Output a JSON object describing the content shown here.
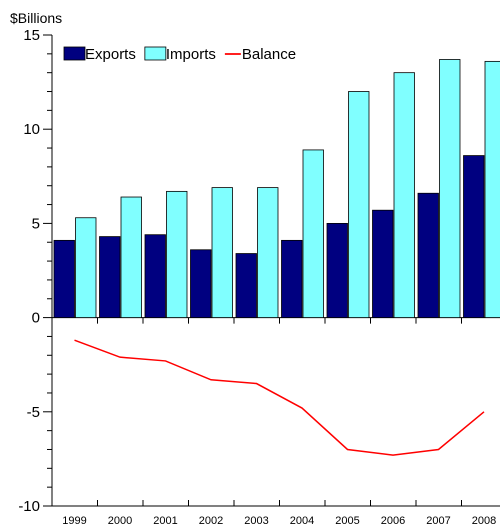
{
  "chart_data": {
    "type": "bar",
    "unit_label": "$Billions",
    "categories": [
      "1999",
      "2000",
      "2001",
      "2002",
      "2003",
      "2004",
      "2005",
      "2006",
      "2007",
      "2008"
    ],
    "series": [
      {
        "name": "Exports",
        "type": "bar",
        "color": "#000080",
        "values": [
          4.1,
          4.3,
          4.4,
          3.6,
          3.4,
          4.1,
          5.0,
          5.7,
          6.6,
          8.6
        ]
      },
      {
        "name": "Imports",
        "type": "bar",
        "color": "#80ffff",
        "values": [
          5.3,
          6.4,
          6.7,
          6.9,
          6.9,
          8.9,
          12.0,
          13.0,
          13.7,
          13.6
        ]
      },
      {
        "name": "Balance",
        "type": "line",
        "color": "#ff0000",
        "values": [
          -1.2,
          -2.1,
          -2.3,
          -3.3,
          -3.5,
          -4.8,
          -7.0,
          -7.3,
          -7.0,
          -5.0
        ]
      }
    ],
    "ylim": [
      -10,
      15
    ],
    "yticks": [
      15,
      10,
      5,
      0,
      -5,
      -10
    ],
    "ytick_labels": [
      "15",
      "10",
      "5",
      "0",
      "-5",
      "-10"
    ],
    "legend_position": "top-left",
    "grid": false
  }
}
